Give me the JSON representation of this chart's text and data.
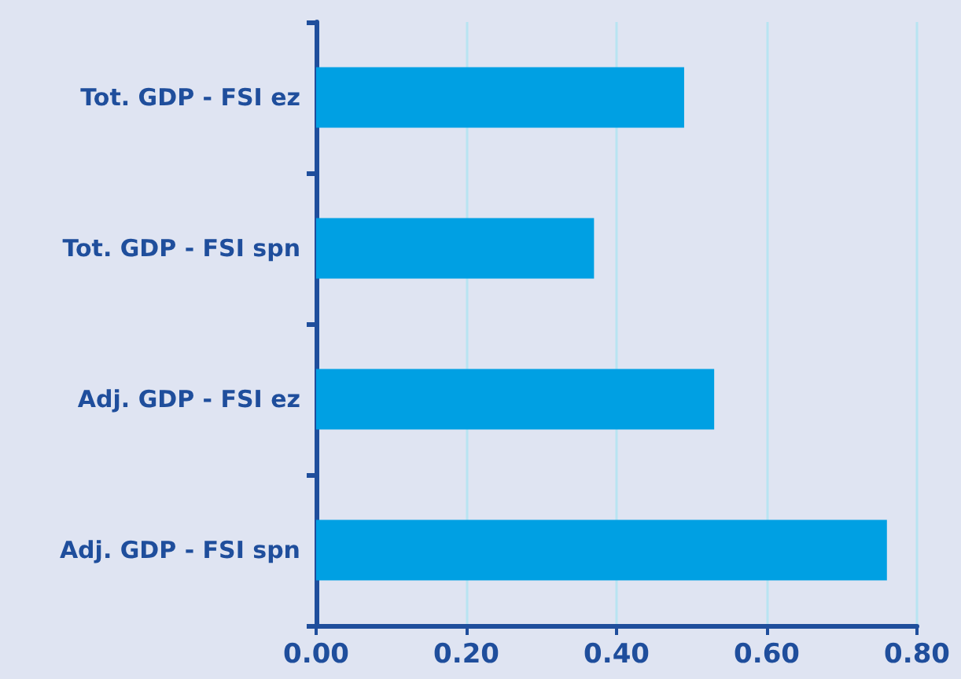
{
  "chart_data": {
    "type": "bar",
    "orientation": "horizontal",
    "categories": [
      "Tot. GDP - FSI ez",
      "Tot. GDP - FSI spn",
      "Adj. GDP - FSI ez",
      "Adj. GDP - FSI spn"
    ],
    "values": [
      0.49,
      0.37,
      0.53,
      0.76
    ],
    "color": "#00a0e3",
    "xlim": [
      0,
      0.8
    ],
    "xticks": [
      {
        "value": 0,
        "label": "0.00"
      },
      {
        "value": 0.2,
        "label": "0.20"
      },
      {
        "value": 0.4,
        "label": "0.40"
      },
      {
        "value": 0.6,
        "label": "0.60"
      },
      {
        "value": 0.8,
        "label": "0.80"
      }
    ],
    "grid": "x"
  }
}
